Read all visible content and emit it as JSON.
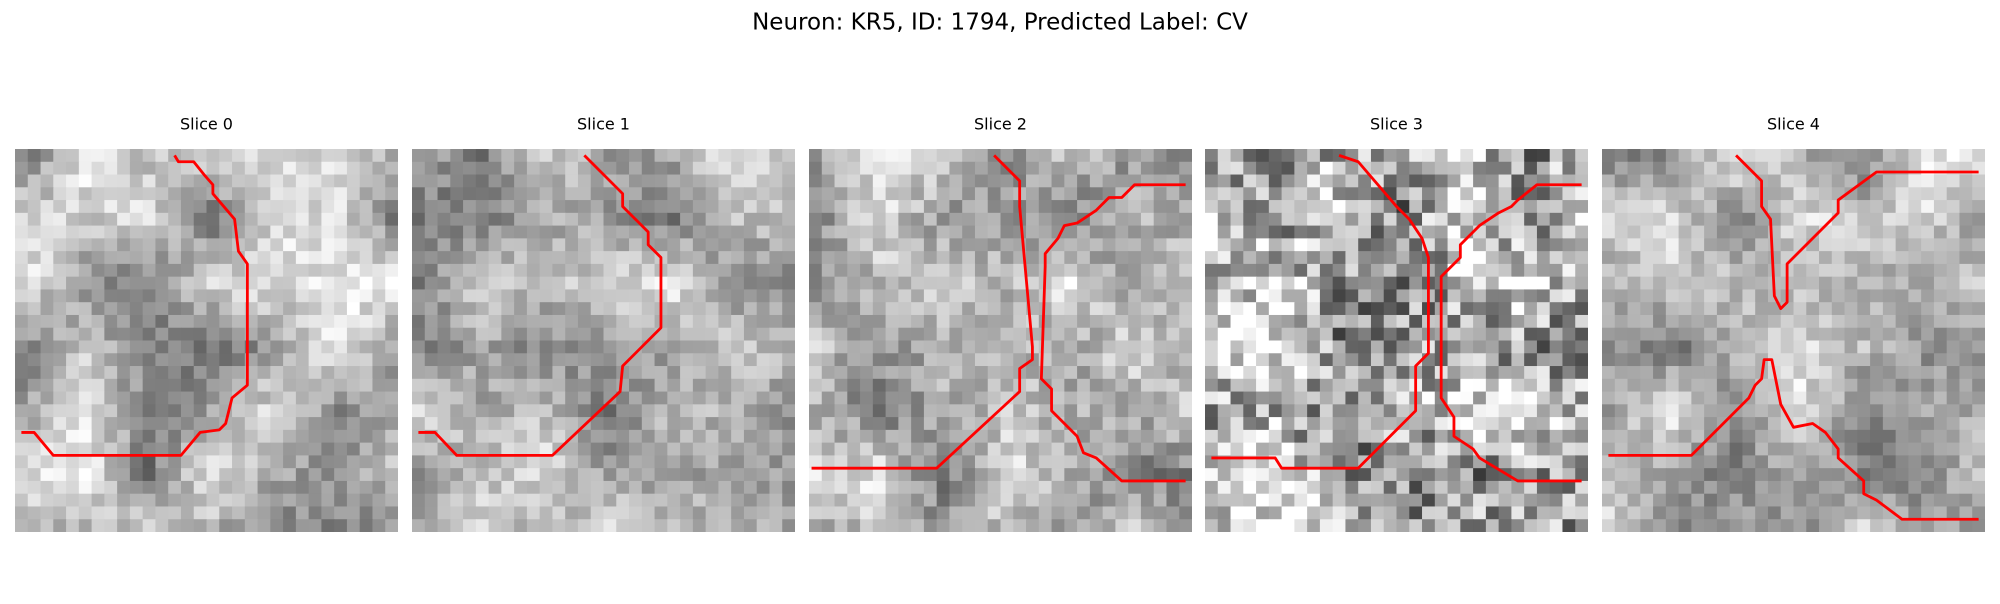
{
  "header": {
    "title": "Neuron: KR5, ID: 1794, Predicted Label: CV"
  },
  "panels": [
    {
      "title": "Slice 0"
    },
    {
      "title": "Slice 1"
    },
    {
      "title": "Slice 2"
    },
    {
      "title": "Slice 3"
    },
    {
      "title": "Slice 4"
    }
  ]
}
